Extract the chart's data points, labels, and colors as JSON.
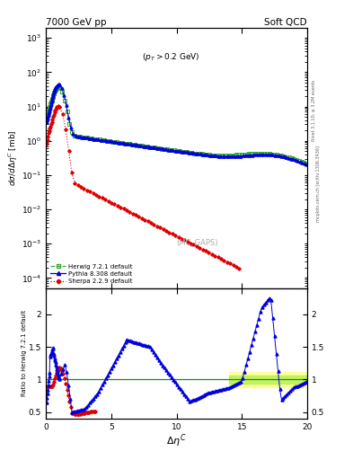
{
  "title_left": "7000 GeV pp",
  "title_right": "Soft QCD",
  "annotation": "(p_{T} > 0.2 GeV)",
  "mc_label": "(MC_GAPS)",
  "xlim": [
    0,
    20
  ],
  "ylim_main": [
    5e-05,
    2000.0
  ],
  "ylim_ratio": [
    0.4,
    2.4
  ],
  "ratio_yticks": [
    0.5,
    1.0,
    1.5,
    2.0
  ],
  "herwig_color": "#33aa33",
  "pythia_color": "#0000dd",
  "sherpa_color": "#dd0000",
  "band_color_yellow": "#ffff88",
  "band_color_green": "#aaee44"
}
